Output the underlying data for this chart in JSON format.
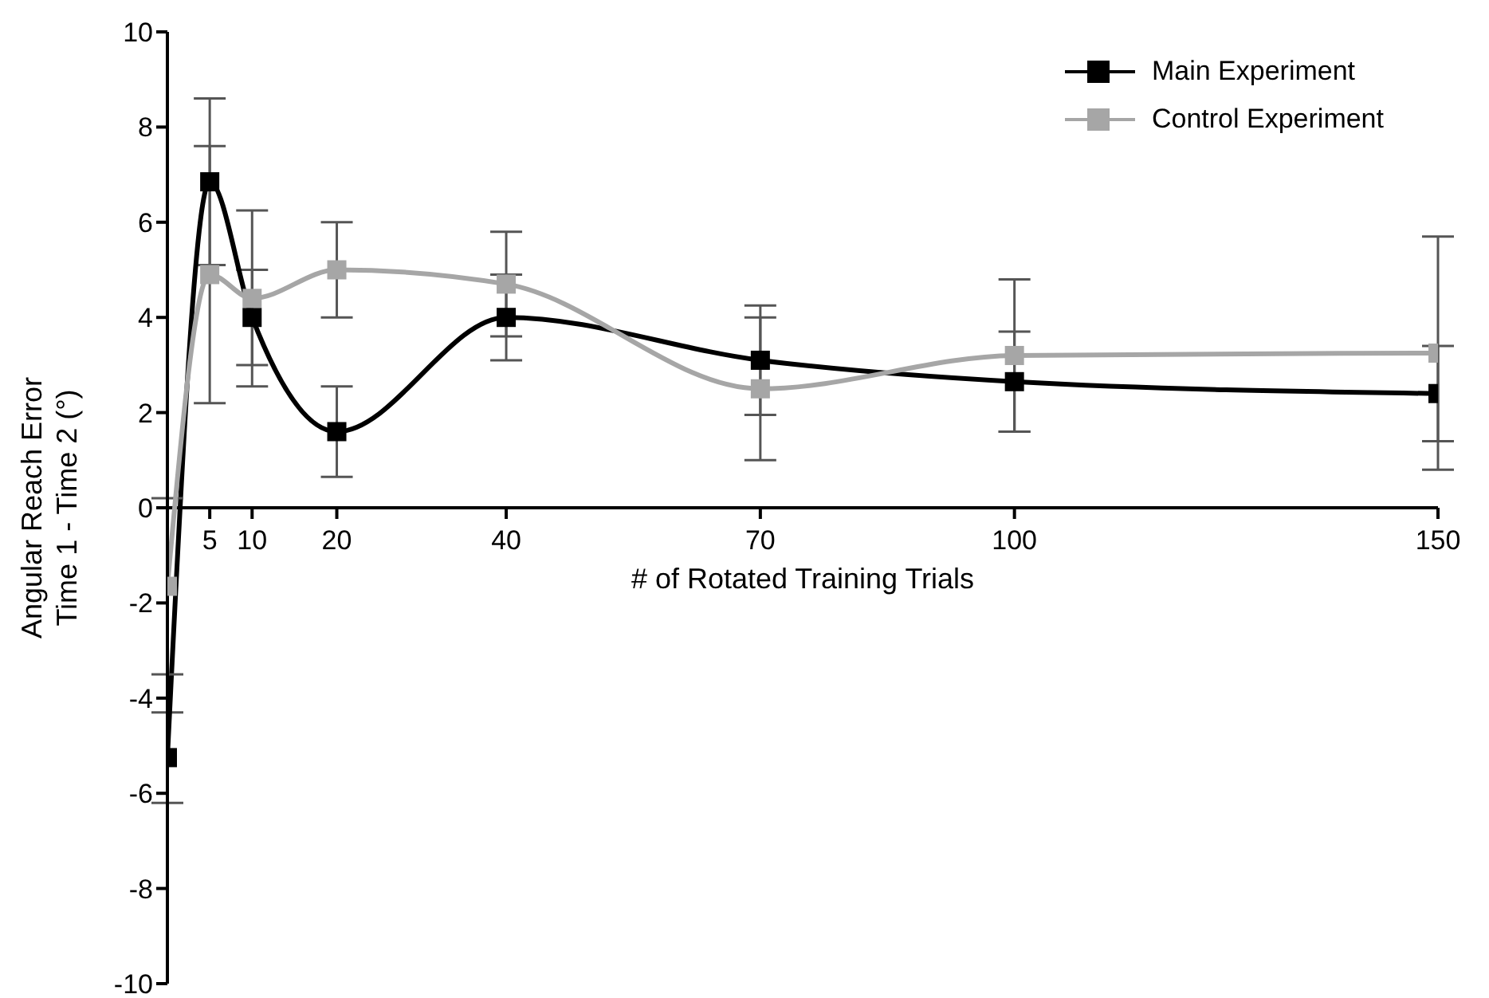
{
  "chart_data": {
    "type": "line",
    "xlabel": "# of Rotated Training Trials",
    "ylabel": "Angular Reach Error\nTime 1 - Time 2 (°)",
    "x": [
      0,
      5,
      10,
      20,
      40,
      70,
      100,
      150
    ],
    "xlim": [
      0,
      150
    ],
    "xticks": [
      5,
      10,
      20,
      40,
      70,
      100,
      150
    ],
    "ylim": [
      -10,
      10
    ],
    "yticks": [
      -10,
      -8,
      -6,
      -4,
      -2,
      0,
      2,
      4,
      6,
      8,
      10
    ],
    "series": [
      {
        "name": "Main Experiment",
        "color": "#000000",
        "values": [
          -5.25,
          6.85,
          4.0,
          1.6,
          4.0,
          3.1,
          2.65,
          2.4
        ],
        "errors": [
          0.95,
          1.75,
          1.0,
          0.95,
          0.9,
          1.15,
          1.05,
          1.0
        ]
      },
      {
        "name": "Control Experiment",
        "color": "#a6a6a6",
        "values": [
          -1.65,
          4.9,
          4.4,
          5.0,
          4.7,
          2.5,
          3.2,
          3.25
        ],
        "errors": [
          1.85,
          2.7,
          1.85,
          1.0,
          1.1,
          1.5,
          1.6,
          2.45
        ]
      }
    ],
    "marker": "square",
    "legend": "top right"
  }
}
